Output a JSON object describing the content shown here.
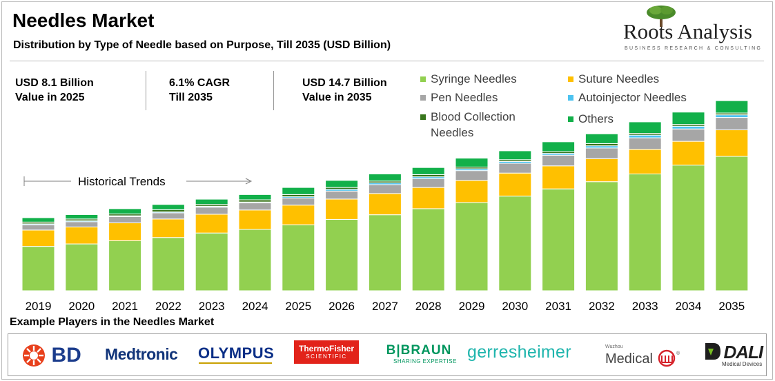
{
  "header": {
    "title": "Needles Market",
    "subtitle": "Distribution by Type of Needle based on Purpose, Till 2035 (USD Billion)"
  },
  "brand": {
    "name": "Roots Analysis",
    "tagline": "BUSINESS RESEARCH & CONSULTING"
  },
  "kpis": [
    {
      "line1": "USD 8.1 Billion",
      "line2": "Value in 2025"
    },
    {
      "line1": "6.1% CAGR",
      "line2": "Till 2035"
    },
    {
      "line1": "USD 14.7 Billion",
      "line2": "Value in 2035"
    }
  ],
  "legend": {
    "syringe": "Syringe Needles",
    "suture": "Suture Needles",
    "pen": "Pen Needles",
    "autoinjector": "Autoinjector Needles",
    "blood_line1": "Blood Collection",
    "blood_line2": "Needles",
    "others": "Others"
  },
  "colors": {
    "syringe": "#92d050",
    "suture": "#ffc000",
    "pen": "#a6a6a6",
    "autoinjector": "#4dc3f0",
    "blood": "#38761d",
    "others": "#12b04a"
  },
  "historical_label": "Historical Trends",
  "chart_data": {
    "type": "bar",
    "stacked": true,
    "categories": [
      "2019",
      "2020",
      "2021",
      "2022",
      "2023",
      "2024",
      "2025",
      "2026",
      "2027",
      "2028",
      "2029",
      "2030",
      "2031",
      "2032",
      "2033",
      "2034",
      "2035"
    ],
    "series": [
      {
        "name": "Syringe Needles",
        "key": "syringe",
        "values": [
          3.45,
          3.64,
          3.89,
          4.14,
          4.49,
          4.77,
          5.13,
          5.55,
          5.91,
          6.38,
          6.86,
          7.36,
          7.92,
          8.48,
          9.08,
          9.77,
          10.45
        ]
      },
      {
        "name": "Suture Needles",
        "key": "suture",
        "values": [
          1.27,
          1.32,
          1.39,
          1.44,
          1.46,
          1.51,
          1.53,
          1.58,
          1.65,
          1.65,
          1.72,
          1.79,
          1.79,
          1.79,
          1.92,
          1.85,
          2.06
        ]
      },
      {
        "name": "Pen Needles",
        "key": "pen",
        "values": [
          0.41,
          0.41,
          0.48,
          0.48,
          0.55,
          0.55,
          0.55,
          0.62,
          0.69,
          0.69,
          0.76,
          0.76,
          0.83,
          0.83,
          0.89,
          0.96,
          0.96
        ]
      },
      {
        "name": "Autoinjector Needles",
        "key": "autoinjector",
        "values": [
          0.07,
          0.07,
          0.07,
          0.07,
          0.07,
          0.07,
          0.1,
          0.14,
          0.14,
          0.14,
          0.14,
          0.14,
          0.14,
          0.17,
          0.21,
          0.21,
          0.21
        ]
      },
      {
        "name": "Blood Collection Needles",
        "key": "blood",
        "values": [
          0.14,
          0.14,
          0.14,
          0.17,
          0.14,
          0.17,
          0.17,
          0.14,
          0.14,
          0.17,
          0.14,
          0.14,
          0.14,
          0.17,
          0.14,
          0.14,
          0.14
        ]
      },
      {
        "name": "Others",
        "key": "others",
        "values": [
          0.34,
          0.34,
          0.41,
          0.41,
          0.41,
          0.41,
          0.55,
          0.55,
          0.55,
          0.55,
          0.69,
          0.69,
          0.76,
          0.76,
          0.89,
          0.96,
          0.96
        ]
      }
    ],
    "ylim": [
      0,
      15
    ]
  },
  "players": {
    "title": "Example Players in the Needles Market",
    "bd": "BD",
    "medtronic": "Medtronic",
    "olympus": "OLYMPUS",
    "thermo_line1": "ThermoFisher",
    "thermo_line2": "SCIENTIFIC",
    "bbraun_line1": "B|BRAUN",
    "bbraun_line2": "SHARING EXPERTISE",
    "gerresheimer": "gerresheimer",
    "wuzhou_small": "Wuzhou",
    "medical": "Medical",
    "dali_main": "DALI",
    "dali_sub": "Medical Devices"
  }
}
